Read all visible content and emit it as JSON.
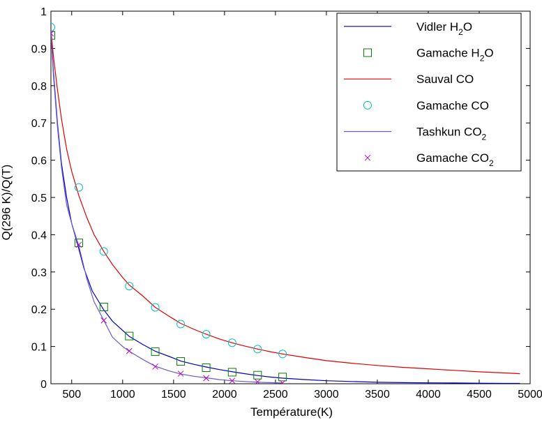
{
  "chart_data": {
    "type": "line",
    "title": "",
    "xlabel": "Température(K)",
    "ylabel": "Q(296 K)/Q(T)",
    "xlim": [
      296,
      5000
    ],
    "ylim": [
      0,
      1
    ],
    "xticks": [
      500,
      1000,
      1500,
      2000,
      2500,
      3000,
      3500,
      4000,
      4500,
      5000
    ],
    "yticks": [
      0,
      0.1,
      0.2,
      0.3,
      0.4,
      0.5,
      0.6,
      0.7,
      0.8,
      0.9,
      1
    ],
    "x_tick_labels": [
      "500",
      "1000",
      "1500",
      "2000",
      "2500",
      "3000",
      "3500",
      "4000",
      "4500",
      "5000"
    ],
    "y_tick_labels": [
      "0",
      "0.1",
      "0.2",
      "0.3",
      "0.4",
      "0.5",
      "0.6",
      "0.7",
      "0.8",
      "0.9",
      "1"
    ],
    "grid": false,
    "legend_position": "top-right",
    "series": [
      {
        "name": "Vidler H2O",
        "legend_base": "Vidler H",
        "legend_sub": "2",
        "legend_tail": "O",
        "kind": "line",
        "color": "#0000bf",
        "x": [
          296,
          320,
          360,
          400,
          450,
          500,
          560,
          620,
          700,
          810,
          900,
          1000,
          1065,
          1200,
          1320,
          1450,
          1570,
          1700,
          1820,
          1950,
          2080,
          2200,
          2330,
          2450,
          2570,
          2800,
          3000,
          3250,
          3500,
          3750,
          4000,
          4250,
          4500,
          4750,
          4900
        ],
        "y": [
          0.948,
          0.84,
          0.7,
          0.59,
          0.5,
          0.43,
          0.372,
          0.31,
          0.25,
          0.2,
          0.168,
          0.143,
          0.127,
          0.105,
          0.087,
          0.074,
          0.061,
          0.052,
          0.045,
          0.038,
          0.032,
          0.027,
          0.022,
          0.018,
          0.015,
          0.011,
          0.008,
          0.006,
          0.004,
          0.003,
          0.0025,
          0.002,
          0.0015,
          0.001,
          0.001
        ]
      },
      {
        "name": "Gamache H2O",
        "legend_base": "Gamache H",
        "legend_sub": "2",
        "legend_tail": "O",
        "kind": "marker",
        "marker": "square",
        "color": "#008000",
        "x": [
          296,
          570,
          815,
          1065,
          1320,
          1570,
          1820,
          2075,
          2325,
          2570
        ],
        "y": [
          0.935,
          0.378,
          0.206,
          0.128,
          0.086,
          0.06,
          0.043,
          0.031,
          0.023,
          0.018
        ]
      },
      {
        "name": "Sauval CO",
        "legend_base": "Sauval CO",
        "legend_sub": "",
        "legend_tail": "",
        "kind": "line",
        "color": "#e00000",
        "x": [
          296,
          320,
          360,
          400,
          450,
          500,
          570,
          650,
          720,
          815,
          900,
          1000,
          1065,
          1200,
          1320,
          1450,
          1570,
          1700,
          1820,
          1950,
          2075,
          2200,
          2325,
          2450,
          2570,
          2800,
          3000,
          3250,
          3500,
          3750,
          4000,
          4250,
          4500,
          4750,
          4900
        ],
        "y": [
          0.95,
          0.88,
          0.79,
          0.71,
          0.63,
          0.57,
          0.505,
          0.445,
          0.4,
          0.355,
          0.32,
          0.285,
          0.265,
          0.235,
          0.205,
          0.182,
          0.162,
          0.146,
          0.133,
          0.12,
          0.11,
          0.101,
          0.093,
          0.086,
          0.08,
          0.07,
          0.062,
          0.055,
          0.049,
          0.044,
          0.04,
          0.036,
          0.032,
          0.029,
          0.027
        ]
      },
      {
        "name": "Gamache CO",
        "legend_base": "Gamache CO",
        "legend_sub": "",
        "legend_tail": "",
        "kind": "marker",
        "marker": "circle",
        "color": "#00bfbf",
        "x": [
          296,
          570,
          815,
          1065,
          1320,
          1570,
          1820,
          2075,
          2325,
          2570
        ],
        "y": [
          0.957,
          0.527,
          0.355,
          0.262,
          0.205,
          0.16,
          0.133,
          0.11,
          0.093,
          0.08
        ]
      },
      {
        "name": "Tashkun CO2",
        "legend_base": "Tashkun CO",
        "legend_sub": "2",
        "legend_tail": "",
        "kind": "line",
        "color": "#6a5acd",
        "x": [
          296,
          320,
          360,
          400,
          450,
          500,
          570,
          650,
          720,
          815,
          900,
          1000,
          1065,
          1200,
          1320,
          1450,
          1570,
          1700,
          1820,
          1950,
          2075,
          2200,
          2325,
          2450,
          2570
        ],
        "y": [
          0.945,
          0.83,
          0.69,
          0.58,
          0.48,
          0.43,
          0.37,
          0.28,
          0.22,
          0.17,
          0.125,
          0.1,
          0.087,
          0.065,
          0.047,
          0.035,
          0.026,
          0.02,
          0.016,
          0.011,
          0.008,
          0.006,
          0.004,
          0.003,
          0.002
        ]
      },
      {
        "name": "Gamache CO2",
        "legend_base": "Gamache CO",
        "legend_sub": "2",
        "legend_tail": "",
        "kind": "marker",
        "marker": "x",
        "color": "#bf00bf",
        "x": [
          296,
          570,
          815,
          1065,
          1320,
          1570,
          1820,
          2075,
          2325,
          2570
        ],
        "y": [
          0.94,
          0.373,
          0.17,
          0.088,
          0.046,
          0.027,
          0.015,
          0.008,
          0.005,
          0.002
        ]
      }
    ]
  }
}
